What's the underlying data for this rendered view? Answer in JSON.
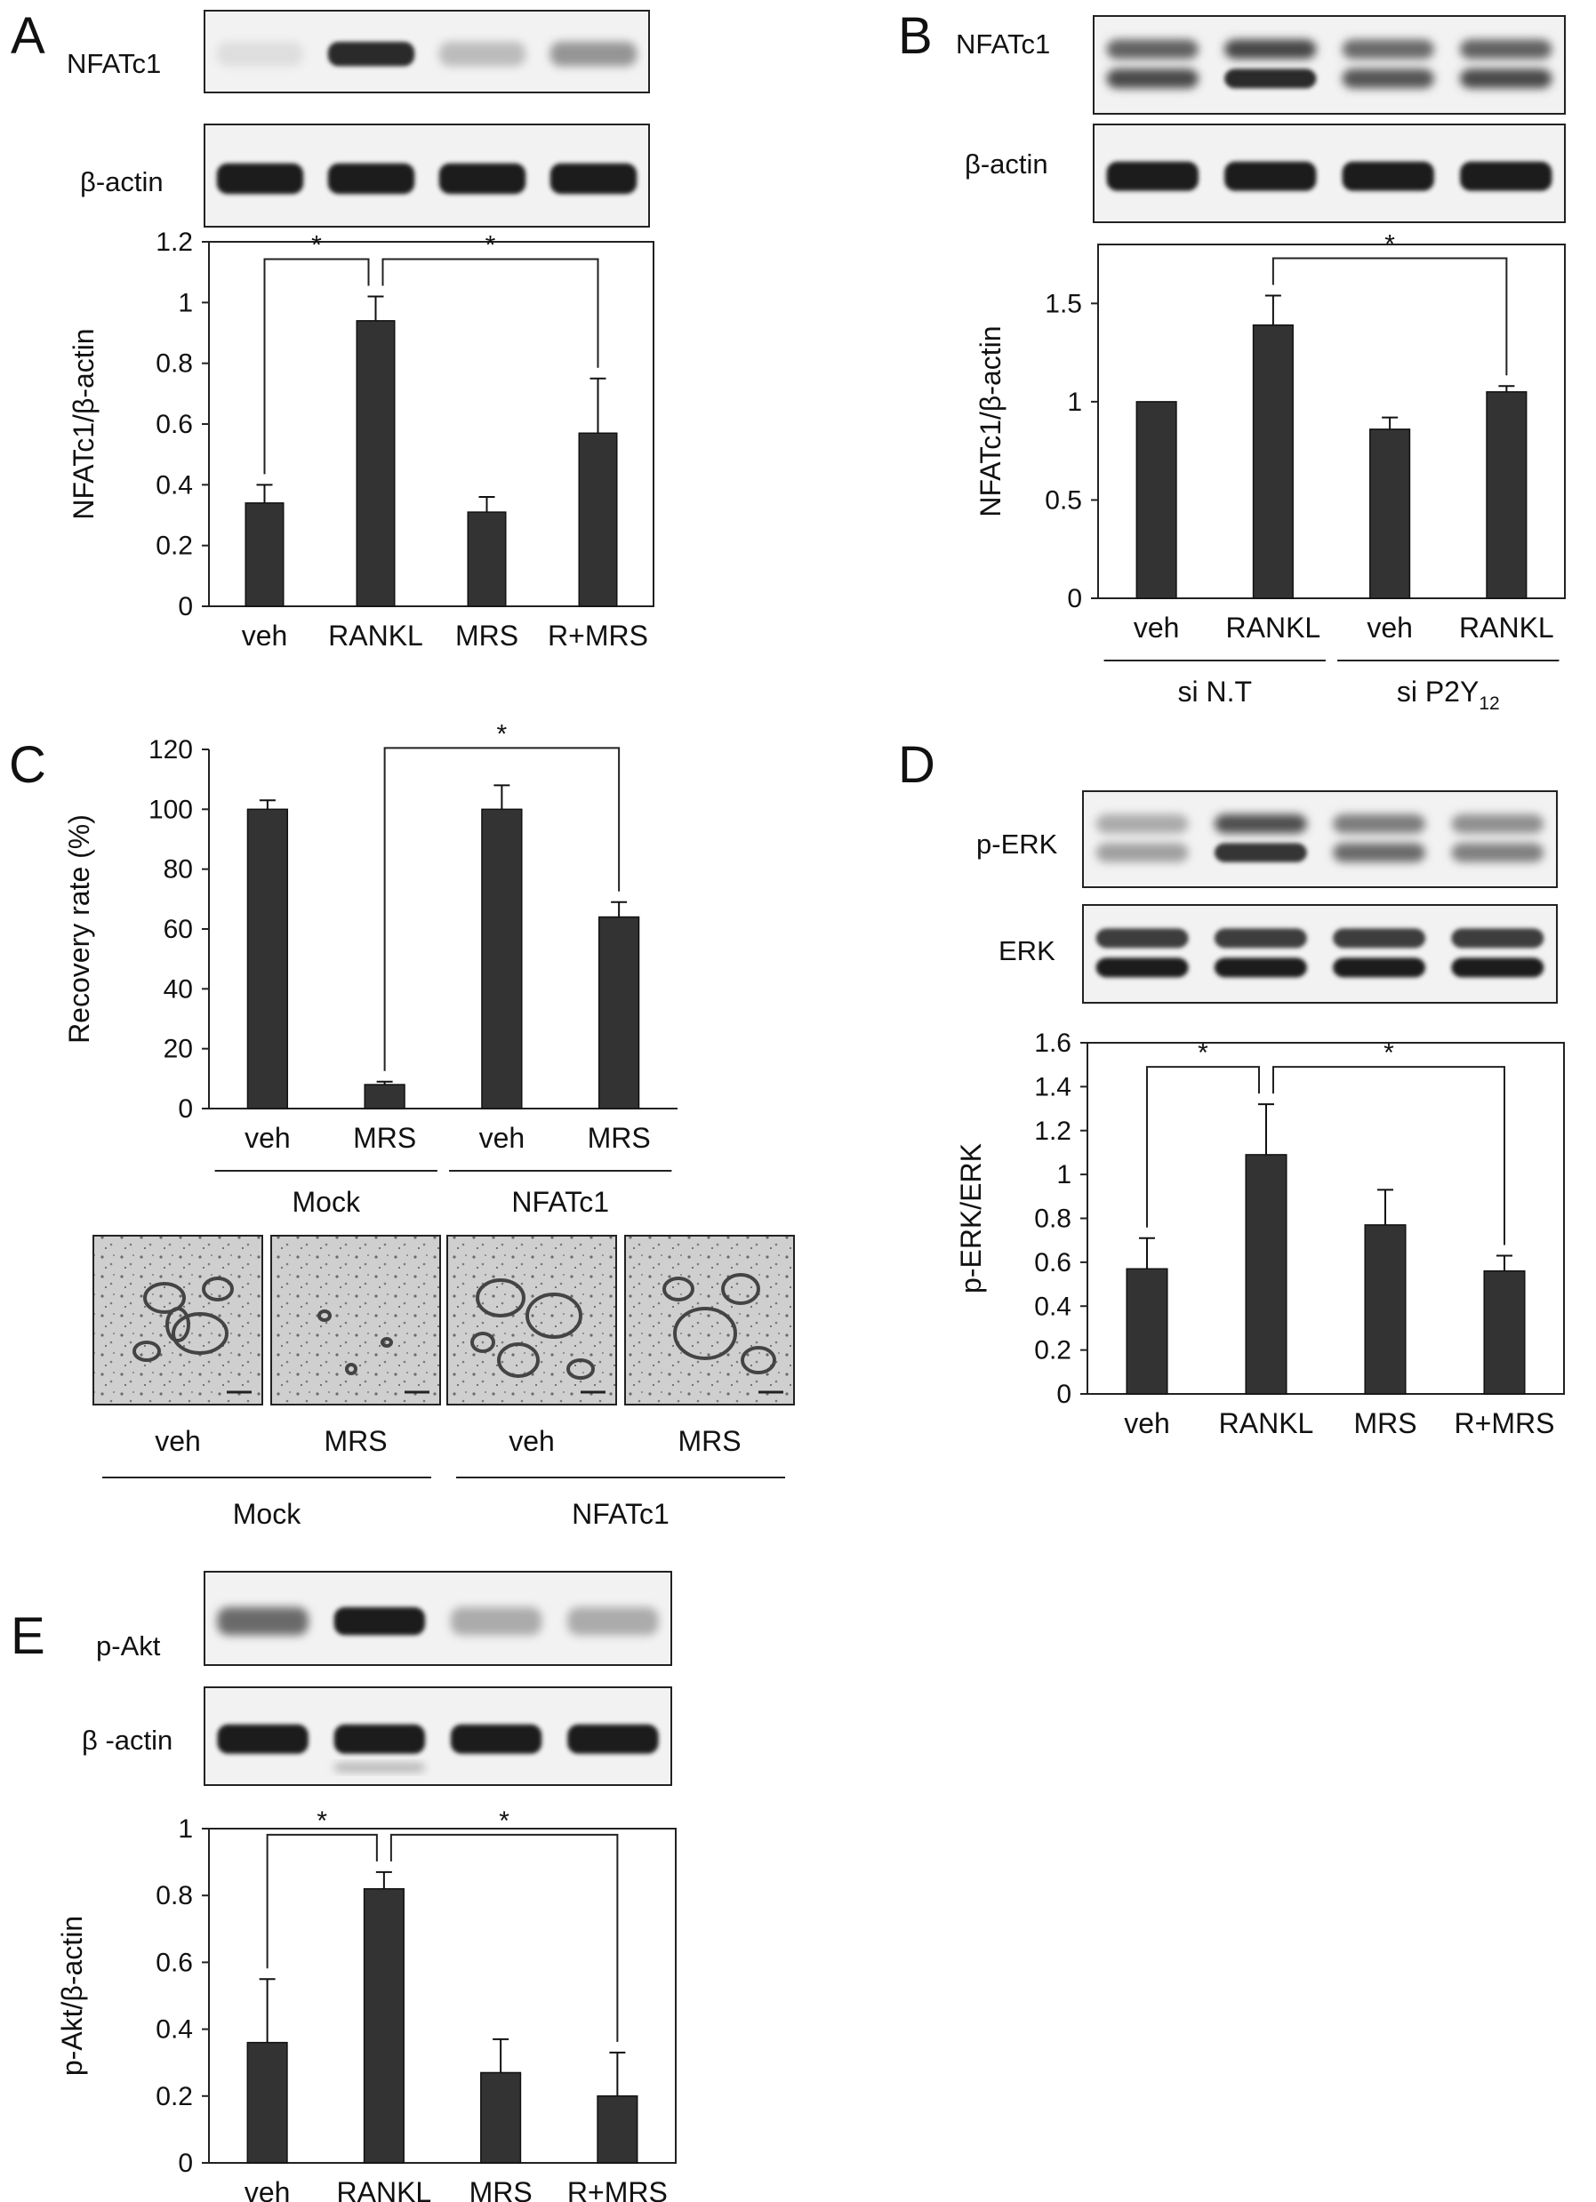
{
  "panels": [
    {
      "letter": "A",
      "blots": [
        {
          "label": "NFATc1",
          "intensity": [
            0.06,
            0.9,
            0.22,
            0.4
          ],
          "double": false,
          "extra": false
        },
        {
          "label": "β-actin",
          "intensity": [
            0.95,
            0.95,
            0.95,
            0.95
          ],
          "double": false,
          "extra": false
        }
      ],
      "chart_data": {
        "type": "bar",
        "ylabel": "NFATc1/β-actin",
        "ylim": [
          0,
          1.2
        ],
        "yticks": [
          "0",
          "0.2",
          "0.4",
          "0.6",
          "0.8",
          "1",
          "1.2"
        ],
        "categories": [
          "veh",
          "RANKL",
          "MRS",
          "R+MRS"
        ],
        "values": [
          0.34,
          0.94,
          0.31,
          0.57
        ],
        "errors": [
          0.06,
          0.08,
          0.05,
          0.18
        ],
        "groups": [],
        "brackets": [
          {
            "from": 0,
            "to": 1,
            "label": "*"
          },
          {
            "from": 1,
            "to": 3,
            "label": "*"
          }
        ]
      }
    },
    {
      "letter": "B",
      "blots": [
        {
          "label": "NFATc1",
          "intensity": [
            0.75,
            0.9,
            0.7,
            0.75
          ],
          "double": true,
          "extra": false
        },
        {
          "label": "β-actin",
          "intensity": [
            0.95,
            0.95,
            0.95,
            0.95
          ],
          "double": false,
          "extra": false
        }
      ],
      "chart_data": {
        "type": "bar",
        "ylabel": "NFATc1/β-actin",
        "ylim": [
          0,
          1.8
        ],
        "yticks": [
          "0",
          "0.5",
          "1",
          "1.5"
        ],
        "categories": [
          "veh",
          "RANKL",
          "veh",
          "RANKL"
        ],
        "values": [
          1.0,
          1.39,
          0.86,
          1.05
        ],
        "errors": [
          0,
          0.15,
          0.06,
          0.03
        ],
        "groups": [
          {
            "label": "si N.T",
            "from": 0,
            "to": 1
          },
          {
            "label": "si P2Y12",
            "from": 2,
            "to": 3
          }
        ],
        "brackets": [
          {
            "from": 1,
            "to": 3,
            "label": "*"
          }
        ]
      }
    },
    {
      "letter": "C",
      "blots": [],
      "chart_data": {
        "type": "bar",
        "ylabel": "Recovery rate (%)",
        "ylim": [
          0,
          120
        ],
        "yticks": [
          "0",
          "20",
          "40",
          "60",
          "80",
          "100",
          "120"
        ],
        "categories": [
          "veh",
          "MRS",
          "veh",
          "MRS"
        ],
        "values": [
          100,
          8,
          100,
          64
        ],
        "errors": [
          3,
          1,
          8,
          5
        ],
        "groups": [
          {
            "label": "Mock",
            "from": 0,
            "to": 1
          },
          {
            "label": "NFATc1",
            "from": 2,
            "to": 3
          }
        ],
        "brackets": [
          {
            "from": 1,
            "to": 3,
            "label": "*"
          }
        ]
      },
      "micrographs": {
        "labels": [
          "veh",
          "MRS",
          "veh",
          "MRS"
        ],
        "groups": [
          {
            "label": "Mock",
            "from": 0,
            "to": 1
          },
          {
            "label": "NFATc1",
            "from": 2,
            "to": 3
          }
        ]
      }
    },
    {
      "letter": "D",
      "blots": [
        {
          "label": "p-ERK",
          "intensity": [
            0.35,
            0.85,
            0.6,
            0.5
          ],
          "double": true,
          "extra": false
        },
        {
          "label": "ERK",
          "intensity": [
            0.95,
            0.95,
            0.95,
            0.95
          ],
          "double": true,
          "extra": false
        }
      ],
      "chart_data": {
        "type": "bar",
        "ylabel": "p-ERK/ERK",
        "ylim": [
          0,
          1.6
        ],
        "yticks": [
          "0",
          "0.2",
          "0.4",
          "0.6",
          "0.8",
          "1",
          "1.2",
          "1.4",
          "1.6"
        ],
        "categories": [
          "veh",
          "RANKL",
          "MRS",
          "R+MRS"
        ],
        "values": [
          0.57,
          1.09,
          0.77,
          0.56
        ],
        "errors": [
          0.14,
          0.23,
          0.16,
          0.07
        ],
        "groups": [],
        "brackets": [
          {
            "from": 0,
            "to": 1,
            "label": "*"
          },
          {
            "from": 1,
            "to": 3,
            "label": "*"
          }
        ]
      }
    },
    {
      "letter": "E",
      "blots": [
        {
          "label": "p-Akt",
          "intensity": [
            0.6,
            0.95,
            0.3,
            0.3
          ],
          "double": false,
          "extra": false
        },
        {
          "label": "β -actin",
          "intensity": [
            0.95,
            0.95,
            0.95,
            0.95
          ],
          "double": false,
          "extra": true
        }
      ],
      "chart_data": {
        "type": "bar",
        "ylabel": "p-Akt/β-actin",
        "ylim": [
          0,
          1
        ],
        "yticks": [
          "0",
          "0.2",
          "0.4",
          "0.6",
          "0.8",
          "1"
        ],
        "categories": [
          "veh",
          "RANKL",
          "MRS",
          "R+MRS"
        ],
        "values": [
          0.36,
          0.82,
          0.27,
          0.2
        ],
        "errors": [
          0.19,
          0.05,
          0.1,
          0.13
        ],
        "groups": [],
        "brackets": [
          {
            "from": 0,
            "to": 1,
            "label": "*"
          },
          {
            "from": 1,
            "to": 3,
            "label": "*"
          }
        ]
      }
    }
  ]
}
